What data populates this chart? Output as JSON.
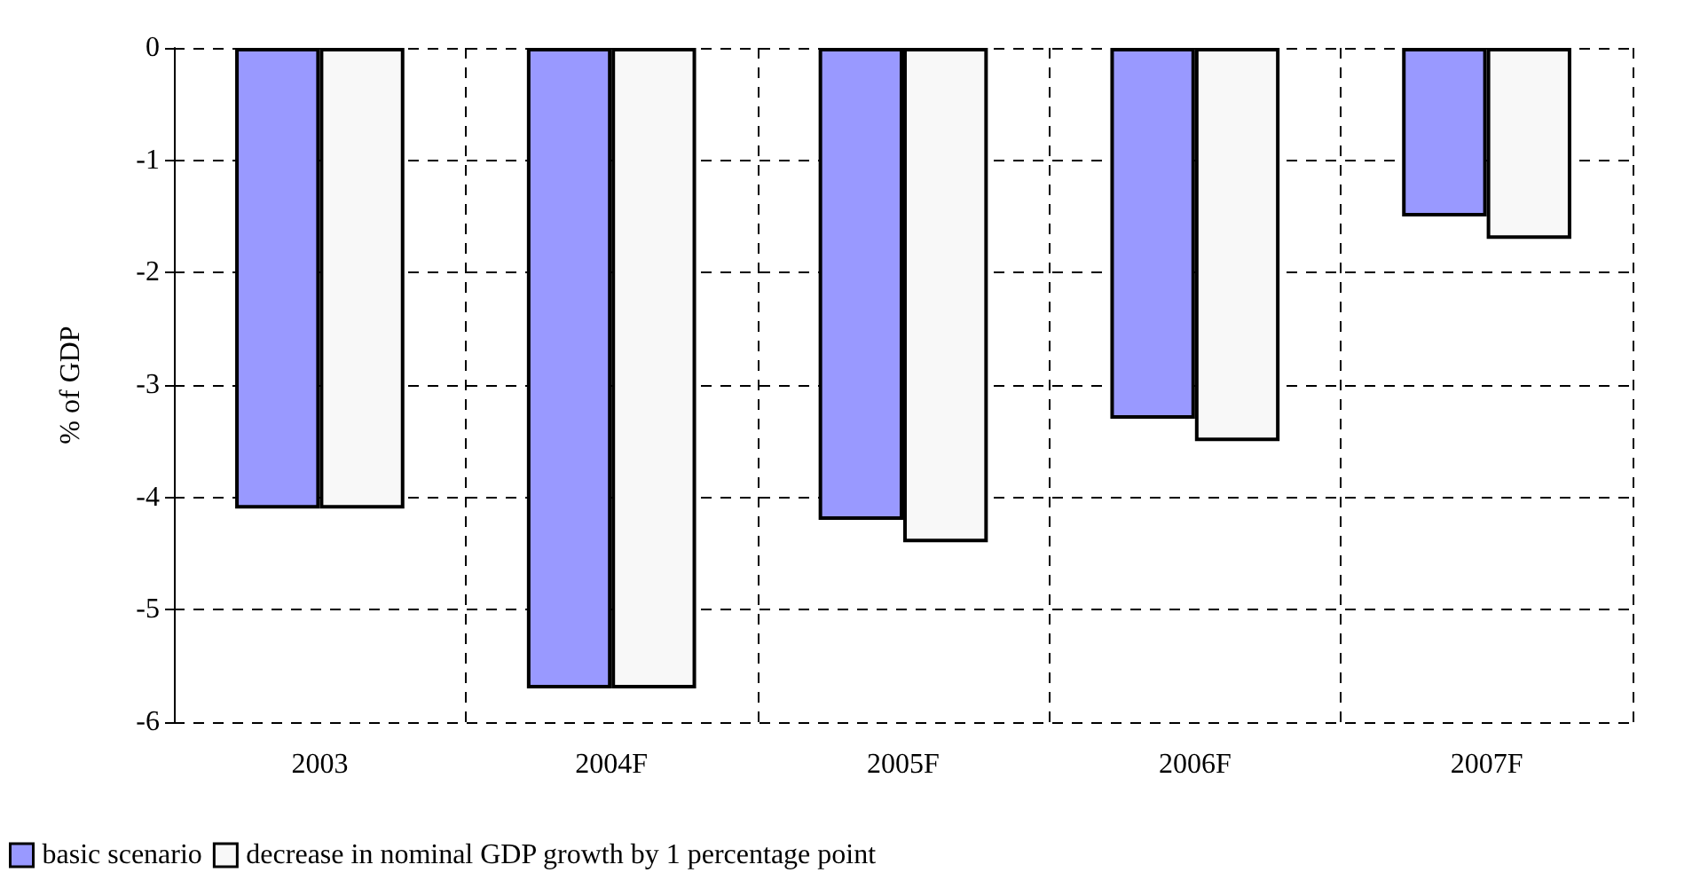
{
  "chart_data": {
    "type": "bar",
    "ylabel": "% of GDP",
    "categories": [
      "2003",
      "2004F",
      "2005F",
      "2006F",
      "2007F"
    ],
    "series": [
      {
        "name": "basic scenario",
        "color": "#9999ff",
        "values": [
          -4.1,
          -5.7,
          -4.2,
          -3.3,
          -1.5
        ]
      },
      {
        "name": "decrease in nominal GDP growth by 1 percentage point",
        "color": "#f8f8f8",
        "values": [
          -4.1,
          -5.7,
          -4.4,
          -3.5,
          -1.7
        ]
      }
    ],
    "ylim": [
      -6,
      0
    ],
    "yticks": [
      -6,
      -5,
      -4,
      -3,
      -2,
      -1,
      0
    ],
    "grid": true,
    "legend": "bottom"
  }
}
